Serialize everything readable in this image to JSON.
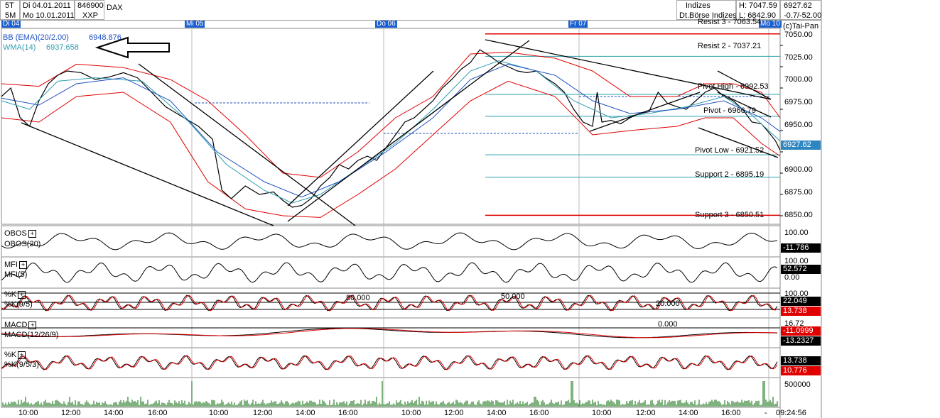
{
  "header": {
    "row1": {
      "interval": "5T",
      "date": "Di 04.01.2011",
      "wkn": "846900",
      "name": "DAX"
    },
    "row2": {
      "interval": "5M",
      "date": "Mo 10.01.2011",
      "exchange": "XXP"
    },
    "category": "Indizes",
    "index_name": "Dt.Börse Indizes",
    "high": "H: 7047.59",
    "low": "L: 6842.90",
    "last": "6927.62",
    "change": "-0.7/-52.00",
    "branding": "(c)Tai-Pan"
  },
  "day_tags": [
    "Di 04",
    "Mi 05",
    "Do 06",
    "Fr 07",
    "Mo 10"
  ],
  "legend": {
    "bb_label": "BB (EMA)(20/2.00)",
    "bb_value": "6948.876",
    "wma_label": "WMA(14)",
    "wma_value": "6937.658"
  },
  "colors": {
    "price": "#000000",
    "bb": "#e00000",
    "ema": "#1f4fbf",
    "wma": "#2f9fb0",
    "accent": "#1a5fd0"
  },
  "chart_data": {
    "type": "line",
    "title": "DAX",
    "price_axis": {
      "ticks": [
        "7050.00",
        "7025.00",
        "7000.00",
        "6975.00",
        "6950.00",
        "6925.00",
        "6900.00",
        "6875.00",
        "6850.00"
      ],
      "range": [
        6840,
        7070
      ]
    },
    "time_ticks": [
      "10:00",
      "12:00",
      "14:00",
      "16:00",
      "10:00",
      "12:00",
      "14:00",
      "16:00",
      "10:00",
      "12:00",
      "14:00",
      "16:00",
      "10:00",
      "12:00",
      "14:00",
      "16:00",
      "10:00",
      "12:00",
      "14:00",
      "16:00",
      "-",
      "09:24:56"
    ],
    "levels": [
      {
        "label": "Resist 3 - 7063.54",
        "value": 7063.54,
        "color": "#e00000"
      },
      {
        "label": "Resist 2 - 7037.21",
        "value": 7037.21,
        "color": "#2f9fb0"
      },
      {
        "label": "Pivot High - 6992.53",
        "value": 6992.53,
        "color": "#2f9fb0"
      },
      {
        "label": "Pivot - 6966.79",
        "value": 6966.79,
        "color": "#2f9fb0"
      },
      {
        "label": "Pivot Low - 6921.52",
        "value": 6921.52,
        "color": "#2f9fb0"
      },
      {
        "label": "Support 2 - 6895.19",
        "value": 6895.19,
        "color": "#2f9fb0"
      },
      {
        "label": "Support 3 - 6850.51",
        "value": 6850.51,
        "color": "#e00000"
      }
    ],
    "series": [
      {
        "name": "DAX",
        "color": "#000000",
        "points": [
          [
            0,
            6990
          ],
          [
            2,
            7000
          ],
          [
            4,
            6965
          ],
          [
            6,
            6955
          ],
          [
            8,
            6985
          ],
          [
            10,
            7005
          ],
          [
            12,
            7015
          ],
          [
            14,
            7020
          ],
          [
            17,
            7018
          ],
          [
            20,
            7010
          ],
          [
            23,
            7013
          ],
          [
            26,
            7018
          ],
          [
            29,
            7012
          ],
          [
            32,
            6995
          ],
          [
            35,
            6978
          ],
          [
            38,
            6968
          ],
          [
            42,
            6955
          ],
          [
            45,
            6940
          ],
          [
            47,
            6880
          ],
          [
            49,
            6870
          ],
          [
            52,
            6885
          ],
          [
            55,
            6875
          ],
          [
            58,
            6878
          ],
          [
            60,
            6868
          ],
          [
            62,
            6860
          ],
          [
            64,
            6862
          ],
          [
            66,
            6870
          ],
          [
            68,
            6885
          ],
          [
            70,
            6895
          ],
          [
            72,
            6910
          ],
          [
            74,
            6905
          ],
          [
            76,
            6915
          ],
          [
            78,
            6920
          ],
          [
            80,
            6915
          ],
          [
            82,
            6930
          ],
          [
            84,
            6945
          ],
          [
            86,
            6960
          ],
          [
            88,
            6965
          ],
          [
            90,
            6975
          ],
          [
            92,
            6985
          ],
          [
            94,
            7000
          ],
          [
            96,
            7010
          ],
          [
            98,
            7022
          ],
          [
            100,
            7030
          ],
          [
            102,
            7045
          ],
          [
            104,
            7038
          ],
          [
            106,
            7030
          ],
          [
            108,
            7025
          ],
          [
            110,
            7020
          ],
          [
            112,
            7018
          ],
          [
            114,
            7020
          ],
          [
            116,
            7012
          ],
          [
            118,
            7005
          ],
          [
            120,
            6995
          ],
          [
            122,
            6975
          ],
          [
            124,
            6960
          ],
          [
            126,
            6955
          ],
          [
            127,
            6995
          ],
          [
            128,
            6960
          ],
          [
            130,
            6962
          ],
          [
            132,
            6958
          ],
          [
            134,
            6965
          ],
          [
            136,
            6970
          ],
          [
            138,
            6972
          ],
          [
            140,
            6995
          ],
          [
            142,
            6982
          ],
          [
            144,
            6978
          ],
          [
            146,
            6975
          ],
          [
            148,
            6985
          ],
          [
            150,
            6995
          ],
          [
            152,
            7000
          ],
          [
            154,
            6990
          ],
          [
            156,
            6985
          ],
          [
            158,
            6975
          ],
          [
            160,
            6960
          ],
          [
            162,
            6958
          ],
          [
            164,
            6945
          ],
          [
            165,
            6938
          ],
          [
            166,
            6927
          ]
        ]
      },
      {
        "name": "WMA(14)",
        "color": "#2f9fb0",
        "points": [
          [
            0,
            6985
          ],
          [
            6,
            6975
          ],
          [
            12,
            7008
          ],
          [
            20,
            7012
          ],
          [
            30,
            7008
          ],
          [
            40,
            6960
          ],
          [
            48,
            6910
          ],
          [
            56,
            6880
          ],
          [
            62,
            6865
          ],
          [
            68,
            6875
          ],
          [
            76,
            6905
          ],
          [
            84,
            6935
          ],
          [
            92,
            6975
          ],
          [
            100,
            7020
          ],
          [
            106,
            7032
          ],
          [
            114,
            7020
          ],
          [
            122,
            6985
          ],
          [
            130,
            6965
          ],
          [
            138,
            6970
          ],
          [
            146,
            6978
          ],
          [
            154,
            6990
          ],
          [
            160,
            6968
          ],
          [
            166,
            6937.658
          ]
        ]
      },
      {
        "name": "BB (EMA)(20/2.00)",
        "color": "#1f4fbf",
        "points": [
          [
            0,
            6988
          ],
          [
            8,
            6980
          ],
          [
            16,
            7005
          ],
          [
            26,
            7012
          ],
          [
            36,
            6985
          ],
          [
            46,
            6925
          ],
          [
            56,
            6890
          ],
          [
            64,
            6872
          ],
          [
            72,
            6890
          ],
          [
            82,
            6925
          ],
          [
            92,
            6965
          ],
          [
            100,
            7010
          ],
          [
            108,
            7028
          ],
          [
            118,
            7015
          ],
          [
            126,
            6985
          ],
          [
            134,
            6970
          ],
          [
            144,
            6975
          ],
          [
            154,
            6985
          ],
          [
            162,
            6965
          ],
          [
            166,
            6948.876
          ]
        ]
      }
    ],
    "bands": {
      "upper": [
        [
          0,
          7005
        ],
        [
          8,
          7002
        ],
        [
          16,
          7028
        ],
        [
          26,
          7024
        ],
        [
          36,
          7010
        ],
        [
          44,
          6985
        ],
        [
          52,
          6945
        ],
        [
          60,
          6900
        ],
        [
          68,
          6895
        ],
        [
          76,
          6925
        ],
        [
          84,
          6965
        ],
        [
          92,
          6990
        ],
        [
          100,
          7040
        ],
        [
          108,
          7042
        ],
        [
          118,
          7035
        ],
        [
          126,
          7020
        ],
        [
          134,
          6990
        ],
        [
          144,
          6990
        ],
        [
          150,
          7005
        ],
        [
          156,
          7005
        ],
        [
          162,
          6995
        ],
        [
          166,
          6965
        ]
      ],
      "lower": [
        [
          0,
          6965
        ],
        [
          8,
          6960
        ],
        [
          16,
          6990
        ],
        [
          26,
          6995
        ],
        [
          36,
          6960
        ],
        [
          44,
          6890
        ],
        [
          52,
          6858
        ],
        [
          60,
          6850
        ],
        [
          68,
          6848
        ],
        [
          76,
          6875
        ],
        [
          84,
          6905
        ],
        [
          92,
          6945
        ],
        [
          100,
          6985
        ],
        [
          108,
          7008
        ],
        [
          118,
          6990
        ],
        [
          126,
          6945
        ],
        [
          134,
          6950
        ],
        [
          144,
          6955
        ],
        [
          150,
          6965
        ],
        [
          156,
          6965
        ],
        [
          162,
          6935
        ],
        [
          166,
          6920
        ]
      ]
    },
    "indicators": [
      {
        "name": "OBOS(20)",
        "tag": "OBOS",
        "axis": [
          "100.00"
        ],
        "value": "-11.786",
        "value_color": "black"
      },
      {
        "name": "MFI(5)",
        "tag": "MFI",
        "axis": [
          "100.00",
          "0.00"
        ],
        "value": "52.572",
        "value_color": "black"
      },
      {
        "name": "%K(9/5)",
        "tag": "%K",
        "axis": [
          "100.00",
          "20.000",
          "50.000",
          "80.000"
        ],
        "values": [
          "22.049",
          "13.738"
        ],
        "value_colors": [
          "black",
          "red"
        ]
      },
      {
        "name": "MACD(12/26/9)",
        "tag": "MACD",
        "axis": [
          "16.72",
          "0.000"
        ],
        "values": [
          "-11.0999",
          "-13.2327"
        ],
        "value_colors": [
          "red",
          "black"
        ]
      },
      {
        "name": "%K(9/5/3)",
        "tag": "%K",
        "axis": [],
        "values": [
          "13.738",
          "10.776"
        ],
        "value_colors": [
          "black",
          "red"
        ]
      },
      {
        "name": "Volume",
        "tag": "",
        "axis": [
          "500000"
        ]
      }
    ],
    "last_price_box": "6927.62"
  }
}
